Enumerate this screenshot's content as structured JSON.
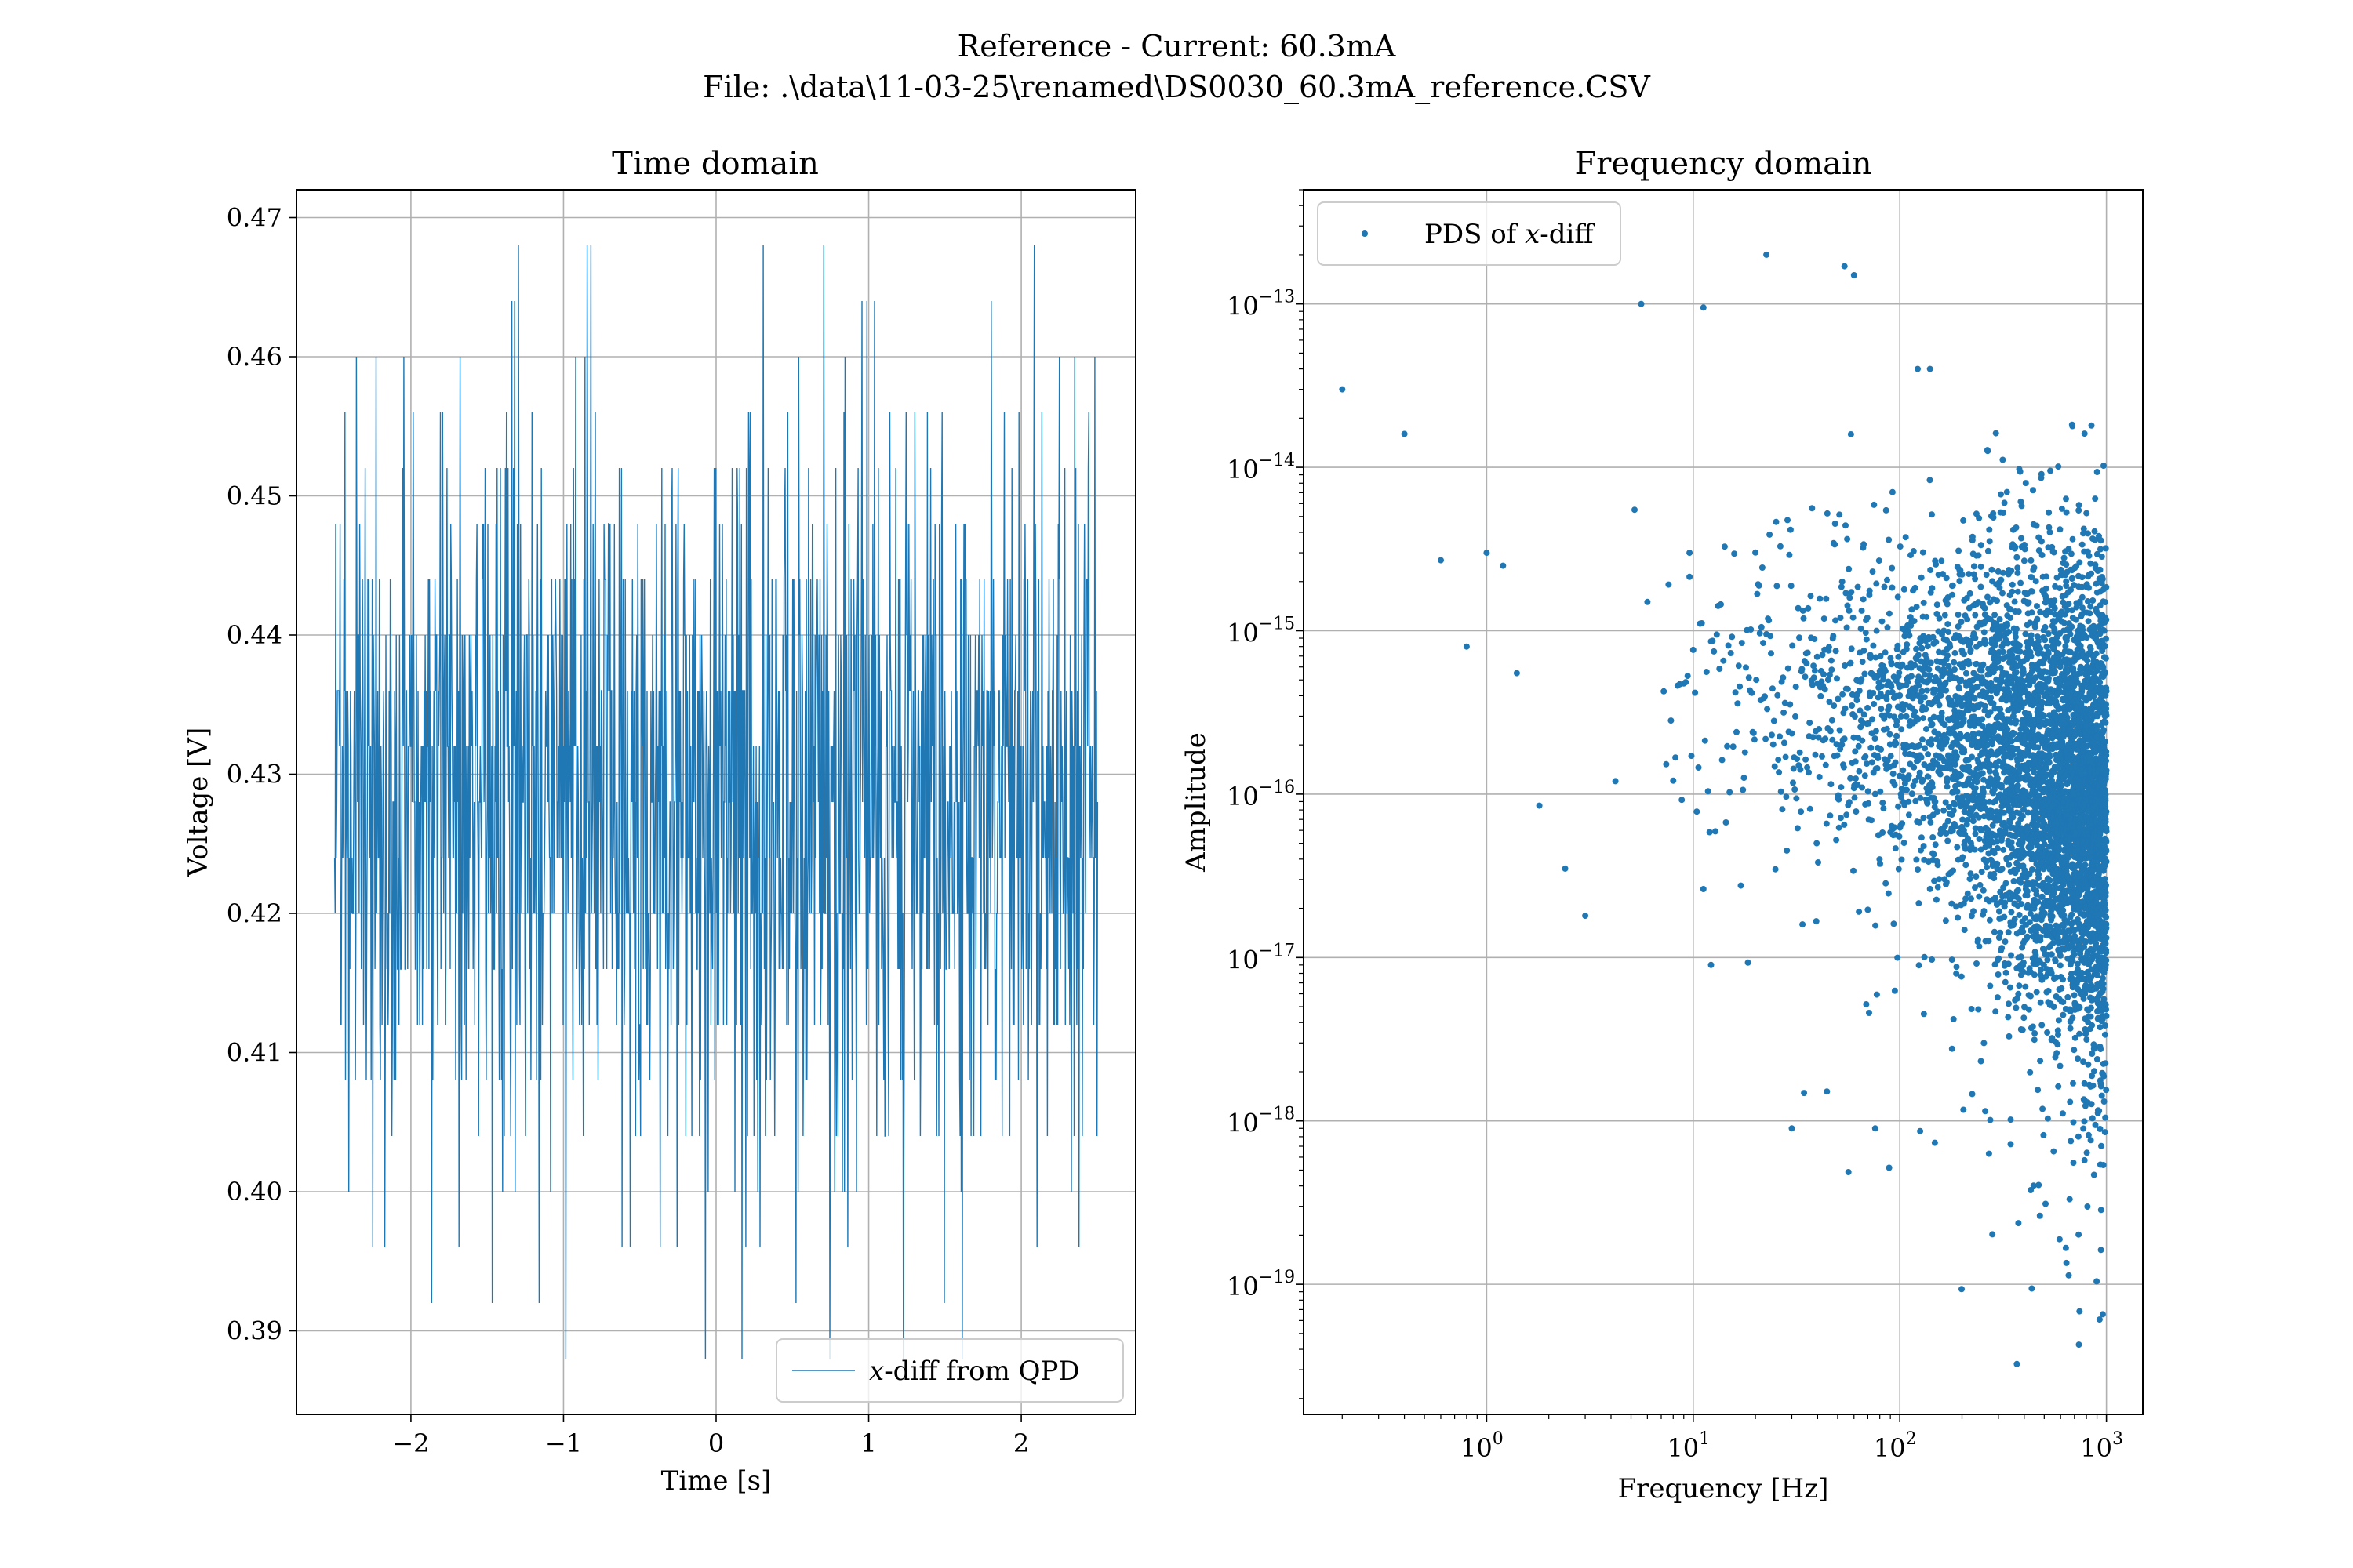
{
  "figure": {
    "suptitle_line1": "Reference - Current: 60.3mA",
    "suptitle_line2": "File: .\\data\\11-03-25\\renamed\\DS0030_60.3mA_reference.CSV"
  },
  "colors": {
    "series": "#1f77b4",
    "grid": "#b0b0b0",
    "frame": "#000000"
  },
  "chart_data": [
    {
      "type": "line",
      "title": "Time domain",
      "xlabel": "Time [s]",
      "ylabel": "Voltage [V]",
      "xlim": [
        -2.75,
        2.75
      ],
      "ylim": [
        0.384,
        0.472
      ],
      "xticks": [
        -2,
        -1,
        0,
        1,
        2
      ],
      "xtick_labels": [
        "−2",
        "−1",
        "0",
        "1",
        "2"
      ],
      "yticks": [
        0.39,
        0.4,
        0.41,
        0.42,
        0.43,
        0.44,
        0.45,
        0.46,
        0.47
      ],
      "ytick_labels": [
        "0.39",
        "0.40",
        "0.41",
        "0.42",
        "0.43",
        "0.44",
        "0.45",
        "0.46",
        "0.47"
      ],
      "grid": true,
      "legend": {
        "position": "lower-right",
        "var": "x",
        "label": "-diff from QPD"
      },
      "series": [
        {
          "x_range": [
            -2.5,
            2.5
          ],
          "quantization_step": 0.004,
          "levels": [
            0.388,
            0.392,
            0.396,
            0.4,
            0.404,
            0.408,
            0.412,
            0.416,
            0.42,
            0.424,
            0.428,
            0.432,
            0.436,
            0.44,
            0.444,
            0.448,
            0.452,
            0.456,
            0.46,
            0.464,
            0.468
          ],
          "mean": 0.428
        }
      ]
    },
    {
      "type": "scatter",
      "title": "Frequency domain",
      "xlabel": "Frequency [Hz]",
      "ylabel": "Amplitude",
      "xscale": "log",
      "yscale": "log",
      "xlim": [
        0.13,
        1500
      ],
      "ylim": [
        1.6e-20,
        5e-13
      ],
      "xticks": [
        1,
        10,
        100,
        1000
      ],
      "xtick_exponents": [
        "0",
        "1",
        "2",
        "3"
      ],
      "yticks": [
        1e-19,
        1e-18,
        1e-17,
        1e-16,
        1e-15,
        1e-14,
        1e-13
      ],
      "ytick_exponents": [
        "−19",
        "−18",
        "−17",
        "−16",
        "−15",
        "−14",
        "−13"
      ],
      "tick_base": "10",
      "grid": true,
      "legend": {
        "position": "upper-left",
        "prefix": "PDS of ",
        "var": "x",
        "suffix": "-diff"
      },
      "series": [
        {
          "x": [
            0.2,
            0.4,
            0.6,
            0.8,
            1.0,
            1.2,
            1.4,
            1.8,
            2.4,
            3.0,
            4.2,
            5.2,
            5.6,
            6.0,
            9.6,
            11.2,
            12.2,
            22.6,
            30.0,
            54.0,
            60.0,
            76.0,
            122.0,
            140.0
          ],
          "y": [
            3e-14,
            1.6e-14,
            2.7e-15,
            8e-16,
            3e-15,
            2.5e-15,
            5.5e-16,
            8.5e-17,
            3.5e-17,
            1.8e-17,
            1.2e-16,
            5.5e-15,
            1e-13,
            1.5e-15,
            3e-15,
            9.5e-14,
            9e-18,
            2e-13,
            9e-19,
            1.7e-13,
            1.5e-13,
            9e-19,
            4e-14,
            4e-14
          ]
        }
      ]
    }
  ]
}
